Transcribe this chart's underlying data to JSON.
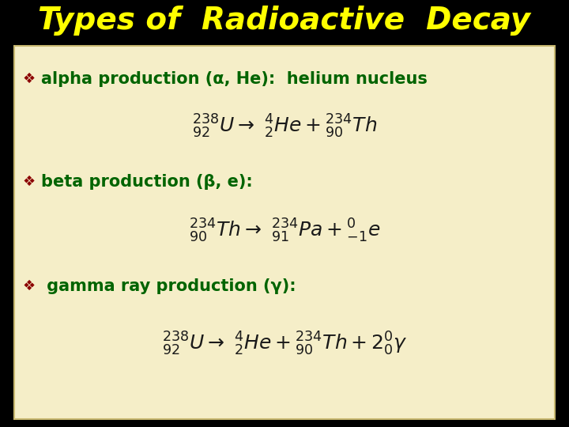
{
  "title": "Types of  Radioactive  Decay",
  "title_color": "#FFFF00",
  "title_fontsize": 28,
  "bg_color": "#000000",
  "panel_bg": "#F5EEC8",
  "panel_border": "#C8B870",
  "bullet_color": "#8B0000",
  "text_color": "#006400",
  "math_color": "#1a1a1a",
  "eq1": "$^{238}_{92}U \\rightarrow\\ ^{4}_{2}He + ^{234}_{90}Th$",
  "eq2": "$^{234}_{90}Th \\rightarrow\\ ^{234}_{91}Pa + ^{0}_{-1}e$",
  "eq3": "$^{238}_{92}U \\rightarrow\\ ^{4}_{2}He + ^{234}_{90}Th + 2^{0}_{0}\\gamma$"
}
